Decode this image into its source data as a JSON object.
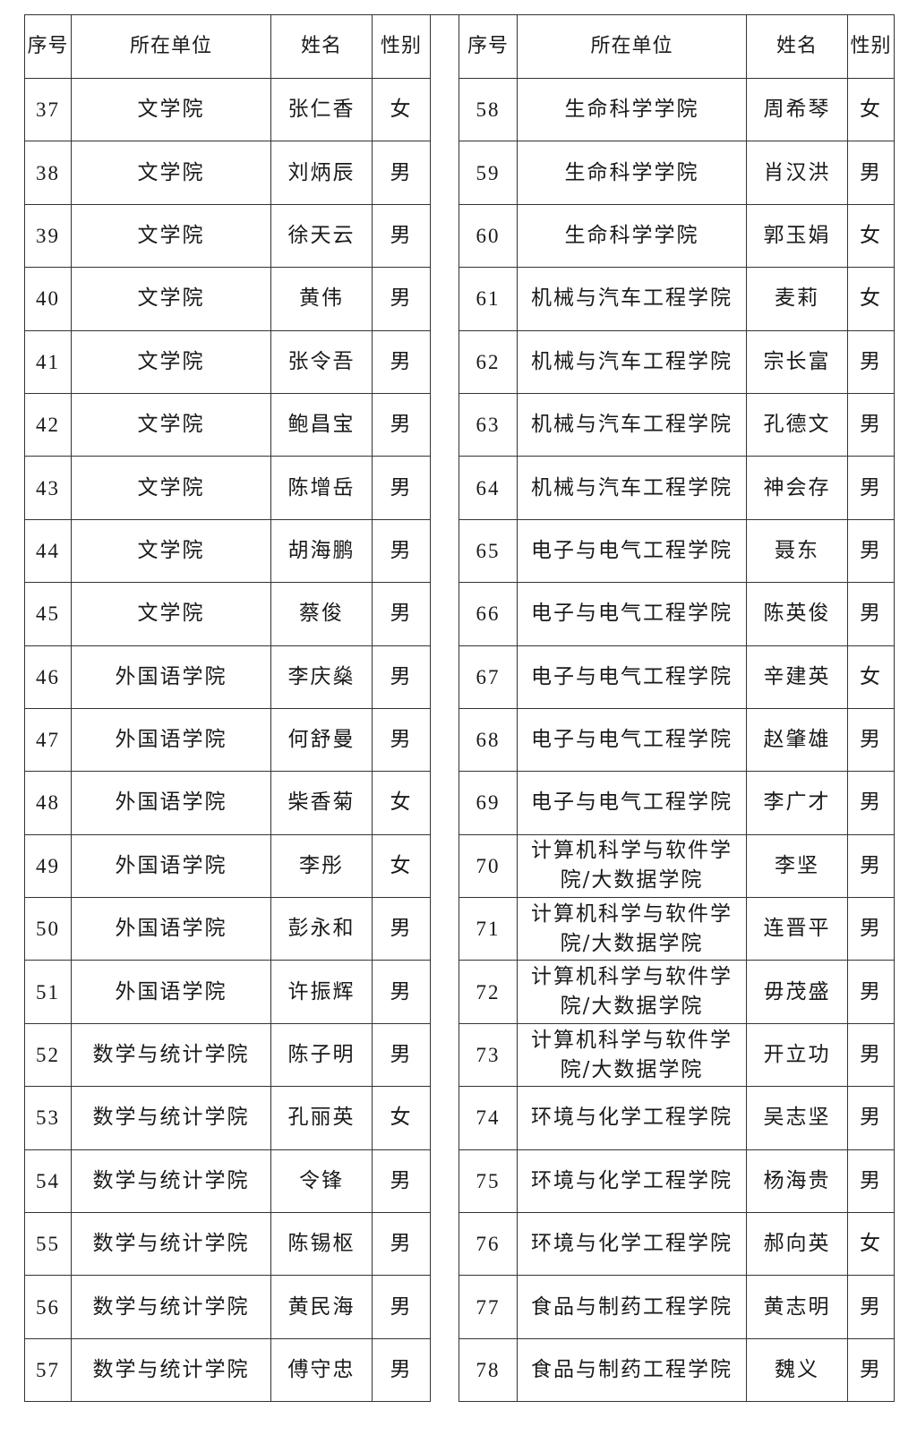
{
  "header": {
    "index": "序号",
    "unit": "所在单位",
    "name": "姓名",
    "gender": "性别"
  },
  "left_rows": [
    {
      "no": "37",
      "unit": "文学院",
      "name": "张仁香",
      "gender": "女"
    },
    {
      "no": "38",
      "unit": "文学院",
      "name": "刘炳辰",
      "gender": "男"
    },
    {
      "no": "39",
      "unit": "文学院",
      "name": "徐天云",
      "gender": "男"
    },
    {
      "no": "40",
      "unit": "文学院",
      "name": "黄伟",
      "gender": "男"
    },
    {
      "no": "41",
      "unit": "文学院",
      "name": "张令吾",
      "gender": "男"
    },
    {
      "no": "42",
      "unit": "文学院",
      "name": "鲍昌宝",
      "gender": "男"
    },
    {
      "no": "43",
      "unit": "文学院",
      "name": "陈增岳",
      "gender": "男"
    },
    {
      "no": "44",
      "unit": "文学院",
      "name": "胡海鹏",
      "gender": "男"
    },
    {
      "no": "45",
      "unit": "文学院",
      "name": "蔡俊",
      "gender": "男"
    },
    {
      "no": "46",
      "unit": "外国语学院",
      "name": "李庆燊",
      "gender": "男"
    },
    {
      "no": "47",
      "unit": "外国语学院",
      "name": "何舒曼",
      "gender": "男"
    },
    {
      "no": "48",
      "unit": "外国语学院",
      "name": "柴香菊",
      "gender": "女"
    },
    {
      "no": "49",
      "unit": "外国语学院",
      "name": "李彤",
      "gender": "女"
    },
    {
      "no": "50",
      "unit": "外国语学院",
      "name": "彭永和",
      "gender": "男"
    },
    {
      "no": "51",
      "unit": "外国语学院",
      "name": "许振辉",
      "gender": "男"
    },
    {
      "no": "52",
      "unit": "数学与统计学院",
      "name": "陈子明",
      "gender": "男"
    },
    {
      "no": "53",
      "unit": "数学与统计学院",
      "name": "孔丽英",
      "gender": "女"
    },
    {
      "no": "54",
      "unit": "数学与统计学院",
      "name": "令锋",
      "gender": "男"
    },
    {
      "no": "55",
      "unit": "数学与统计学院",
      "name": "陈锡枢",
      "gender": "男"
    },
    {
      "no": "56",
      "unit": "数学与统计学院",
      "name": "黄民海",
      "gender": "男"
    },
    {
      "no": "57",
      "unit": "数学与统计学院",
      "name": "傅守忠",
      "gender": "男"
    }
  ],
  "right_rows": [
    {
      "no": "58",
      "unit": "生命科学学院",
      "name": "周希琴",
      "gender": "女"
    },
    {
      "no": "59",
      "unit": "生命科学学院",
      "name": "肖汉洪",
      "gender": "男"
    },
    {
      "no": "60",
      "unit": "生命科学学院",
      "name": "郭玉娟",
      "gender": "女"
    },
    {
      "no": "61",
      "unit": "机械与汽车工程学院",
      "name": "麦莉",
      "gender": "女"
    },
    {
      "no": "62",
      "unit": "机械与汽车工程学院",
      "name": "宗长富",
      "gender": "男"
    },
    {
      "no": "63",
      "unit": "机械与汽车工程学院",
      "name": "孔德文",
      "gender": "男"
    },
    {
      "no": "64",
      "unit": "机械与汽车工程学院",
      "name": "神会存",
      "gender": "男"
    },
    {
      "no": "65",
      "unit": "电子与电气工程学院",
      "name": "聂东",
      "gender": "男"
    },
    {
      "no": "66",
      "unit": "电子与电气工程学院",
      "name": "陈英俊",
      "gender": "男"
    },
    {
      "no": "67",
      "unit": "电子与电气工程学院",
      "name": "辛建英",
      "gender": "女"
    },
    {
      "no": "68",
      "unit": "电子与电气工程学院",
      "name": "赵肇雄",
      "gender": "男"
    },
    {
      "no": "69",
      "unit": "电子与电气工程学院",
      "name": "李广才",
      "gender": "男"
    },
    {
      "no": "70",
      "unit": "计算机科学与软件学院/大数据学院",
      "name": "李坚",
      "gender": "男"
    },
    {
      "no": "71",
      "unit": "计算机科学与软件学院/大数据学院",
      "name": "连晋平",
      "gender": "男"
    },
    {
      "no": "72",
      "unit": "计算机科学与软件学院/大数据学院",
      "name": "毋茂盛",
      "gender": "男"
    },
    {
      "no": "73",
      "unit": "计算机科学与软件学院/大数据学院",
      "name": "开立功",
      "gender": "男"
    },
    {
      "no": "74",
      "unit": "环境与化学工程学院",
      "name": "吴志坚",
      "gender": "男"
    },
    {
      "no": "75",
      "unit": "环境与化学工程学院",
      "name": "杨海贵",
      "gender": "男"
    },
    {
      "no": "76",
      "unit": "环境与化学工程学院",
      "name": "郝向英",
      "gender": "女"
    },
    {
      "no": "77",
      "unit": "食品与制药工程学院",
      "name": "黄志明",
      "gender": "男"
    },
    {
      "no": "78",
      "unit": "食品与制药工程学院",
      "name": "魏义",
      "gender": "男"
    }
  ]
}
